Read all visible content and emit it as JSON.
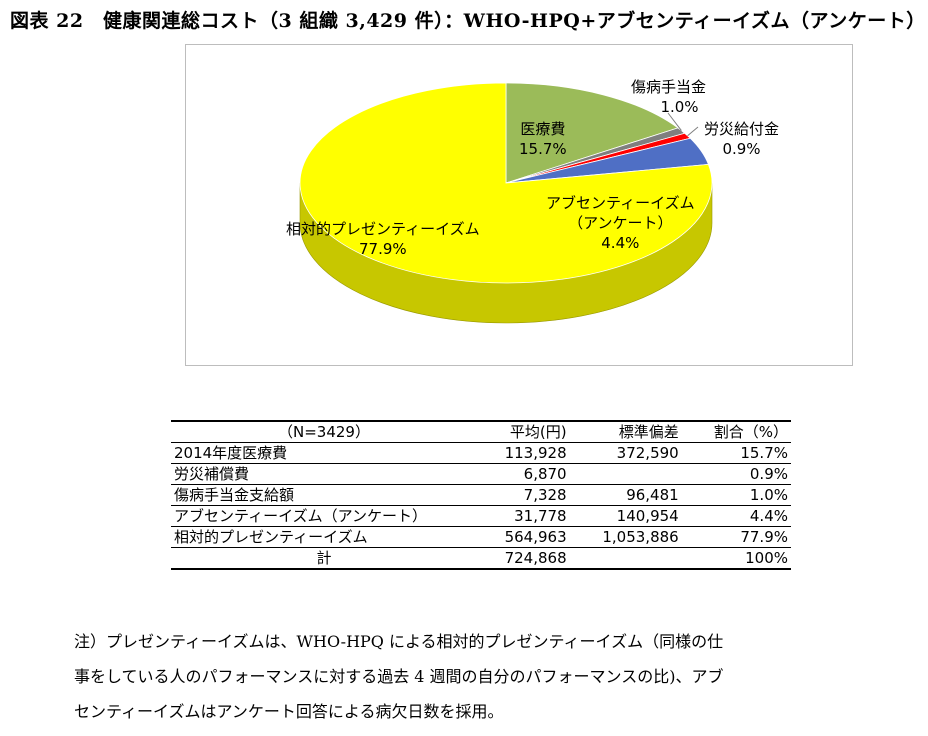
{
  "figure": {
    "title": "図表 22　健康関連総コスト（3 組織 3,429 件）：WHO-HPQ+アブセンティーイズム（アンケート）"
  },
  "chart_data": {
    "type": "pie",
    "title": "",
    "slices": [
      {
        "label": "医療費",
        "value": 15.7,
        "value_label": "15.7%",
        "color": "#9bbb59"
      },
      {
        "label": "傷病手当金",
        "value": 1.0,
        "value_label": "1.0%",
        "color": "#7f7f7f"
      },
      {
        "label": "労災給付金",
        "value": 0.9,
        "value_label": "0.9%",
        "color": "#ff0000"
      },
      {
        "label": "アブセンティーイズム（アンケート）",
        "value": 4.4,
        "value_label": "4.4%",
        "color": "#4f6fc5"
      },
      {
        "label": "相対的プレゼンティーイズム",
        "value": 77.9,
        "value_label": "77.9%",
        "color": "#ffff00"
      }
    ]
  },
  "chart_labels": {
    "medical": {
      "name": "医療費",
      "pct": "15.7%"
    },
    "sickness": {
      "name": "傷病手当金",
      "pct": "1.0%"
    },
    "workers_comp": {
      "name": "労災給付金",
      "pct": "0.9%"
    },
    "absentee_1": "アブセンティーイズム",
    "absentee_2": "（アンケート）",
    "absentee_pct": "4.4%",
    "presentee": {
      "name": "相対的プレゼンティーイズム",
      "pct": "77.9%"
    }
  },
  "table": {
    "headers": [
      "（N=3429）",
      "平均(円)",
      "標準偏差",
      "割合（%）"
    ],
    "rows": [
      [
        "2014年度医療費",
        "113,928",
        "372,590",
        "15.7%"
      ],
      [
        "労災補償費",
        "6,870",
        "",
        "0.9%"
      ],
      [
        "傷病手当金支給額",
        "7,328",
        "96,481",
        "1.0%"
      ],
      [
        "アブセンティーイズム（アンケート）",
        "31,778",
        "140,954",
        "4.4%"
      ],
      [
        "相対的プレゼンティーイズム",
        "564,963",
        "1,053,886",
        "77.9%"
      ]
    ],
    "total": [
      "計",
      "724,868",
      "",
      "100%"
    ]
  },
  "note": {
    "line1": "注）プレゼンティーイズムは、WHO-HPQ による相対的プレゼンティーイズム（同様の仕",
    "line2": "事をしている人のパフォーマンスに対する過去 4 週間の自分のパフォーマンスの比)、アブ",
    "line3": "センティーイズムはアンケート回答による病欠日数を採用。"
  }
}
